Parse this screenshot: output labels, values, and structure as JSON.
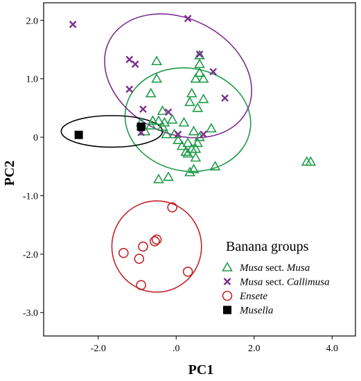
{
  "chart_data": {
    "type": "scatter",
    "xlabel": "PC1",
    "ylabel": "PC2",
    "xlim": [
      -3.4,
      4.6
    ],
    "ylim": [
      -3.4,
      2.3
    ],
    "x_ticks": [
      -2.0,
      0.0,
      2.0,
      4.0
    ],
    "x_tick_labels": [
      "-2.0",
      ".0",
      "2.0",
      "4.0"
    ],
    "y_ticks": [
      2.0,
      1.0,
      0.0,
      -1.0,
      -2.0,
      -3.0
    ],
    "y_tick_labels": [
      "2.0",
      "1.0",
      "0",
      "-1.0",
      "-2.0",
      "-3.0"
    ],
    "grid": false,
    "legend": {
      "title": "Banana groups",
      "position": "bottom-right",
      "entries": [
        {
          "series": 0,
          "italic": "Musa",
          "plain": " sect. ",
          "italic2": "Musa"
        },
        {
          "series": 1,
          "italic": "Musa",
          "plain": " sect. ",
          "italic2": "Callimusa"
        },
        {
          "series": 2,
          "italic": "Ensete",
          "plain": "",
          "italic2": ""
        },
        {
          "series": 3,
          "italic": "Musella",
          "plain": "",
          "italic2": ""
        }
      ]
    },
    "series": [
      {
        "name": "Musa sect. Musa",
        "marker": "triangle",
        "color": "#1f9a4a",
        "points": [
          [
            -0.5,
            1.3
          ],
          [
            -0.5,
            1.0
          ],
          [
            -0.65,
            0.75
          ],
          [
            -0.35,
            0.45
          ],
          [
            -0.45,
            0.28
          ],
          [
            -0.65,
            0.2
          ],
          [
            -0.35,
            0.18
          ],
          [
            -0.25,
            0.05
          ],
          [
            -0.6,
            0.28
          ],
          [
            -0.9,
            0.25
          ],
          [
            -0.8,
            0.1
          ],
          [
            -0.3,
            0.25
          ],
          [
            -0.1,
            0.3
          ],
          [
            -0.05,
            0.05
          ],
          [
            0.05,
            -0.05
          ],
          [
            0.15,
            -0.15
          ],
          [
            0.25,
            -0.25
          ],
          [
            0.3,
            -0.1
          ],
          [
            0.4,
            -0.2
          ],
          [
            0.45,
            0.1
          ],
          [
            0.5,
            -0.2
          ],
          [
            0.55,
            -0.1
          ],
          [
            0.6,
            0.0
          ],
          [
            0.35,
            0.6
          ],
          [
            0.4,
            0.75
          ],
          [
            0.55,
            0.5
          ],
          [
            0.7,
            0.65
          ],
          [
            0.5,
            1.0
          ],
          [
            0.6,
            1.1
          ],
          [
            0.7,
            1.0
          ],
          [
            0.6,
            1.25
          ],
          [
            0.6,
            1.4
          ],
          [
            0.45,
            -0.55
          ],
          [
            0.35,
            -0.6
          ],
          [
            0.5,
            -0.35
          ],
          [
            0.9,
            0.15
          ],
          [
            1.0,
            -0.5
          ],
          [
            -0.45,
            -0.72
          ],
          [
            -0.2,
            -0.68
          ],
          [
            0.2,
            0.25
          ],
          [
            0.3,
            -0.28
          ],
          [
            3.35,
            -0.42
          ],
          [
            3.45,
            -0.42
          ]
        ]
      },
      {
        "name": "Musa sect. Callimusa",
        "marker": "x",
        "color": "#7b2d8e",
        "points": [
          [
            -2.65,
            1.93
          ],
          [
            -1.2,
            1.33
          ],
          [
            -1.05,
            1.25
          ],
          [
            -1.2,
            0.82
          ],
          [
            -0.85,
            0.48
          ],
          [
            0.3,
            2.03
          ],
          [
            0.6,
            1.42
          ],
          [
            0.95,
            1.12
          ],
          [
            1.25,
            0.67
          ],
          [
            -0.2,
            0.43
          ],
          [
            0.05,
            0.05
          ],
          [
            -0.9,
            0.08
          ],
          [
            0.7,
            0.05
          ]
        ]
      },
      {
        "name": "Ensete",
        "marker": "circle",
        "color": "#c42128",
        "points": [
          [
            -0.1,
            -1.2
          ],
          [
            -0.5,
            -1.75
          ],
          [
            -0.55,
            -1.78
          ],
          [
            -0.85,
            -1.87
          ],
          [
            -1.35,
            -1.98
          ],
          [
            -0.95,
            -2.08
          ],
          [
            0.3,
            -2.3
          ],
          [
            -0.9,
            -2.53
          ]
        ]
      },
      {
        "name": "Musella",
        "marker": "square",
        "color": "#000000",
        "points": [
          [
            -2.5,
            0.04
          ],
          [
            -0.9,
            0.18
          ]
        ]
      }
    ],
    "ellipses": [
      {
        "series": 0,
        "cx": 0.3,
        "cy": 0.3,
        "rx": 1.32,
        "ry": 1.08,
        "angle": 80,
        "color": "#1f9a4a"
      },
      {
        "series": 1,
        "cx": 0.05,
        "cy": 1.05,
        "rx": 1.98,
        "ry": 0.98,
        "angle": -27,
        "color": "#7b2d8e"
      },
      {
        "series": 2,
        "cx": -0.5,
        "cy": -1.87,
        "rx": 1.15,
        "ry": 0.78,
        "angle": 0,
        "color": "#c42128"
      },
      {
        "series": 3,
        "cx": -1.65,
        "cy": 0.1,
        "rx": 1.3,
        "ry": 0.27,
        "angle": 0,
        "color": "#000000"
      }
    ]
  }
}
